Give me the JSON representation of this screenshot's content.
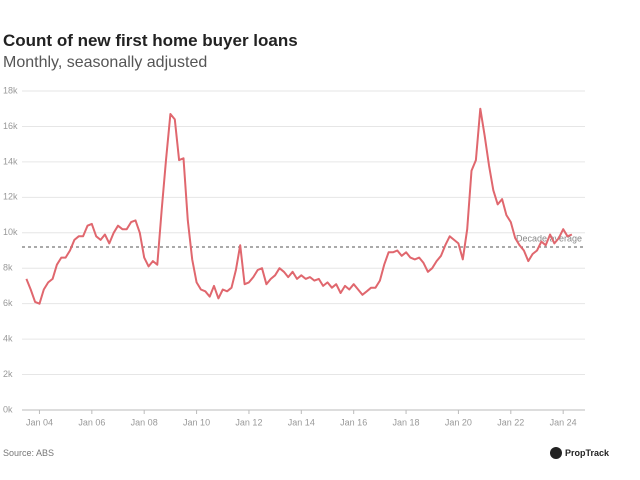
{
  "chart_data": {
    "type": "line",
    "title": "Count of new first home buyer loans",
    "subtitle": "Monthly, seasonally adjusted",
    "source": "Source: ABS",
    "logo": "PropTrack",
    "x": [
      "2003-07",
      "2003-09",
      "2003-11",
      "2004-01",
      "2004-03",
      "2004-05",
      "2004-07",
      "2004-09",
      "2004-11",
      "2005-01",
      "2005-03",
      "2005-05",
      "2005-07",
      "2005-09",
      "2005-11",
      "2006-01",
      "2006-03",
      "2006-05",
      "2006-07",
      "2006-09",
      "2006-11",
      "2007-01",
      "2007-03",
      "2007-05",
      "2007-07",
      "2007-09",
      "2007-11",
      "2008-01",
      "2008-03",
      "2008-05",
      "2008-07",
      "2008-09",
      "2008-11",
      "2009-01",
      "2009-03",
      "2009-05",
      "2009-07",
      "2009-09",
      "2009-11",
      "2010-01",
      "2010-03",
      "2010-05",
      "2010-07",
      "2010-09",
      "2010-11",
      "2011-01",
      "2011-03",
      "2011-05",
      "2011-07",
      "2011-09",
      "2011-11",
      "2012-01",
      "2012-03",
      "2012-05",
      "2012-07",
      "2012-09",
      "2012-11",
      "2013-01",
      "2013-03",
      "2013-05",
      "2013-07",
      "2013-09",
      "2013-11",
      "2014-01",
      "2014-03",
      "2014-05",
      "2014-07",
      "2014-09",
      "2014-11",
      "2015-01",
      "2015-03",
      "2015-05",
      "2015-07",
      "2015-09",
      "2015-11",
      "2016-01",
      "2016-03",
      "2016-05",
      "2016-07",
      "2016-09",
      "2016-11",
      "2017-01",
      "2017-03",
      "2017-05",
      "2017-07",
      "2017-09",
      "2017-11",
      "2018-01",
      "2018-03",
      "2018-05",
      "2018-07",
      "2018-09",
      "2018-11",
      "2019-01",
      "2019-03",
      "2019-05",
      "2019-07",
      "2019-09",
      "2019-11",
      "2020-01",
      "2020-03",
      "2020-05",
      "2020-07",
      "2020-09",
      "2020-11",
      "2021-01",
      "2021-03",
      "2021-05",
      "2021-07",
      "2021-09",
      "2021-11",
      "2022-01",
      "2022-03",
      "2022-05",
      "2022-07",
      "2022-09",
      "2022-11",
      "2023-01",
      "2023-03",
      "2023-05",
      "2023-07",
      "2023-09",
      "2023-11",
      "2024-01",
      "2024-03",
      "2024-05"
    ],
    "series": [
      {
        "name": "First home buyer loans",
        "color": "#e0676e",
        "values": [
          7400,
          6800,
          6100,
          6000,
          6800,
          7200,
          7400,
          8200,
          8600,
          8600,
          9000,
          9600,
          9800,
          9800,
          10400,
          10500,
          9800,
          9600,
          9900,
          9400,
          10000,
          10400,
          10200,
          10200,
          10600,
          10700,
          10000,
          8600,
          8100,
          8400,
          8200,
          11300,
          14100,
          16700,
          16400,
          14100,
          14200,
          10700,
          8500,
          7200,
          6800,
          6700,
          6400,
          7000,
          6300,
          6800,
          6700,
          6900,
          7900,
          9300,
          7100,
          7200,
          7500,
          7900,
          8000,
          7100,
          7400,
          7600,
          8000,
          7800,
          7500,
          7800,
          7400,
          7600,
          7400,
          7500,
          7300,
          7400,
          7000,
          7200,
          6900,
          7100,
          6600,
          7000,
          6800,
          7100,
          6800,
          6500,
          6700,
          6900,
          6900,
          7300,
          8200,
          8900,
          8900,
          9000,
          8700,
          8900,
          8600,
          8500,
          8600,
          8300,
          7800,
          8000,
          8400,
          8700,
          9300,
          9800,
          9600,
          9400,
          8500,
          10200,
          13500,
          14100,
          17000,
          15500,
          13800,
          12400,
          11600,
          11900,
          11000,
          10600,
          9700,
          9300,
          9000,
          8400,
          8800,
          9000,
          9500,
          9300,
          9900,
          9400,
          9700,
          10200,
          9800,
          9900
        ]
      }
    ],
    "reference_line": {
      "value": 9200,
      "label": "Decade average"
    },
    "xlim": [
      "2003-05",
      "2024-11"
    ],
    "xticks": [
      {
        "value": "2004-01",
        "label": "Jan 04"
      },
      {
        "value": "2006-01",
        "label": "Jan 06"
      },
      {
        "value": "2008-01",
        "label": "Jan 08"
      },
      {
        "value": "2010-01",
        "label": "Jan 10"
      },
      {
        "value": "2012-01",
        "label": "Jan 12"
      },
      {
        "value": "2014-01",
        "label": "Jan 14"
      },
      {
        "value": "2016-01",
        "label": "Jan 16"
      },
      {
        "value": "2018-01",
        "label": "Jan 18"
      },
      {
        "value": "2020-01",
        "label": "Jan 20"
      },
      {
        "value": "2022-01",
        "label": "Jan 22"
      },
      {
        "value": "2024-01",
        "label": "Jan 24"
      }
    ],
    "ylim": [
      0,
      18000
    ],
    "yticks": [
      {
        "value": 0,
        "label": "0k"
      },
      {
        "value": 2000,
        "label": "2k"
      },
      {
        "value": 4000,
        "label": "4k"
      },
      {
        "value": 6000,
        "label": "6k"
      },
      {
        "value": 8000,
        "label": "8k"
      },
      {
        "value": 10000,
        "label": "10k"
      },
      {
        "value": 12000,
        "label": "12k"
      },
      {
        "value": 14000,
        "label": "14k"
      },
      {
        "value": 16000,
        "label": "16k"
      },
      {
        "value": 18000,
        "label": "18k"
      }
    ],
    "grid": true
  }
}
